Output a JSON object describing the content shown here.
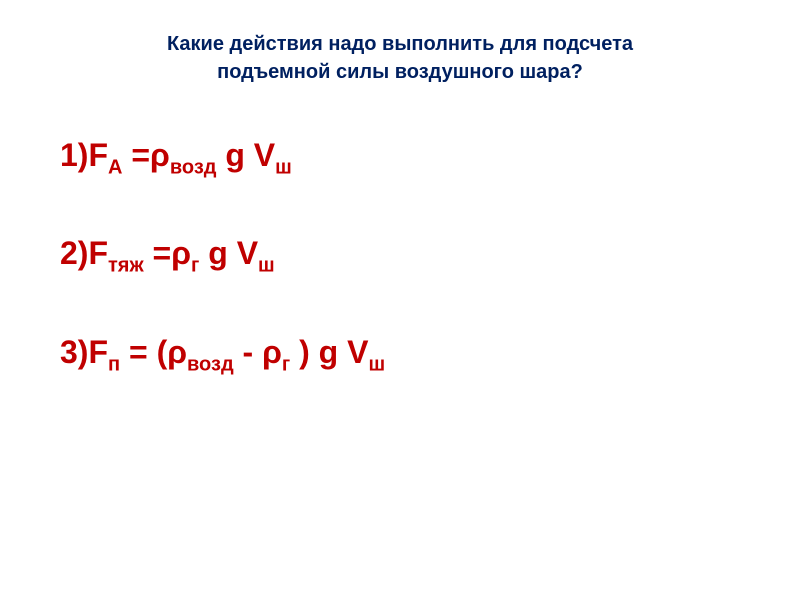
{
  "title_line1": "Какие действия надо выполнить для подсчета",
  "title_line2": "подъемной силы воздушного шара?",
  "formulas": {
    "f1": {
      "prefix": "1)F",
      "sub1": "A",
      "mid1": " =ρ",
      "sub2": "возд",
      "mid2": " g V",
      "sub3": "ш"
    },
    "f2": {
      "prefix": "2)F",
      "sub1": "тяж",
      "mid1": " =ρ",
      "sub2": "г",
      "mid2": " g V",
      "sub3": "ш"
    },
    "f3": {
      "prefix": "3)F",
      "sub1": "п",
      "mid1": " = (ρ",
      "sub2": "возд",
      "mid2": " - ρ",
      "sub3": "г",
      "mid3": " ) g V",
      "sub4": "ш"
    }
  },
  "colors": {
    "title": "#002060",
    "formula": "#c00000",
    "background": "#ffffff"
  },
  "typography": {
    "title_fontsize": 20,
    "formula_fontsize": 32,
    "subscript_fontsize": 20,
    "font_family": "Arial"
  }
}
